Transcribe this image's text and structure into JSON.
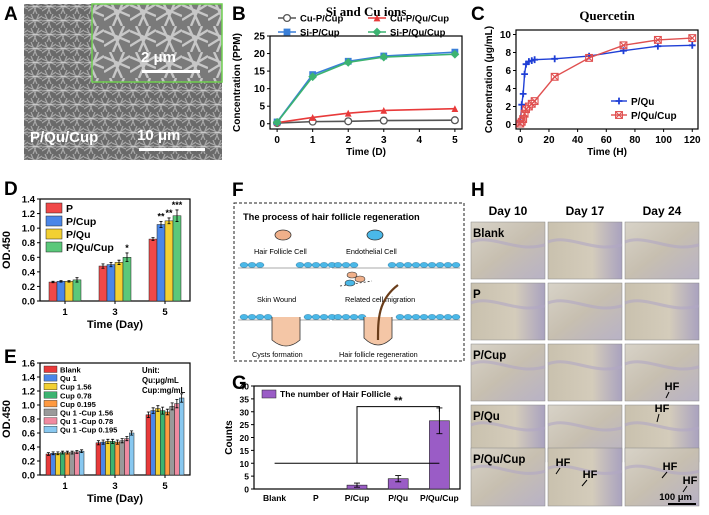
{
  "panels": {
    "A": "A",
    "B": "B",
    "C": "C",
    "D": "D",
    "E": "E",
    "F": "F",
    "G": "G",
    "H": "H"
  },
  "panelA": {
    "sample_label": "P/Qu/Cup",
    "scale_main": "10 μm",
    "scale_inset": "2 μm"
  },
  "colors": {
    "cu_p": "#555555",
    "cu_pqu": "#e83a3a",
    "si_p": "#3a7fd8",
    "si_pqu": "#3cb371",
    "pqu_blue": "#1f3fd6",
    "pqucup_red": "#e05050",
    "d_p": "#f04848",
    "d_pcup": "#4a86e8",
    "d_pqu": "#f2d032",
    "d_pqucup": "#5ac87a",
    "g_bar": "#9a5cc6"
  },
  "chart_data": [
    {
      "id": "B",
      "type": "line",
      "title": "Si and Cu ions",
      "xlabel": "Time (D)",
      "ylabel": "Concentration (PPM)",
      "xlim": [
        -0.2,
        5.2
      ],
      "ylim": [
        -1.5,
        25
      ],
      "xticks": [
        0,
        1,
        2,
        3,
        4,
        5
      ],
      "yticks": [
        0,
        5,
        10,
        15,
        20,
        25
      ],
      "x": [
        0,
        1,
        2,
        3,
        5
      ],
      "series": [
        {
          "name": "Cu-P/Cup",
          "marker": "circle",
          "color": "#555555",
          "values": [
            0.2,
            0.6,
            0.7,
            0.9,
            1.0
          ]
        },
        {
          "name": "Cu-P/Qu/Cup",
          "marker": "triangle",
          "color": "#e83a3a",
          "values": [
            0.3,
            1.8,
            3.0,
            3.8,
            4.3
          ]
        },
        {
          "name": "Si-P/Cup",
          "marker": "square",
          "color": "#3a7fd8",
          "values": [
            0.5,
            14.0,
            17.8,
            19.3,
            20.4
          ]
        },
        {
          "name": "Si-P/Qu/Cup",
          "marker": "diamond",
          "color": "#3cb371",
          "values": [
            0.4,
            13.4,
            17.5,
            19.0,
            19.8
          ]
        }
      ]
    },
    {
      "id": "C",
      "type": "line",
      "title": "Quercetin",
      "xlabel": "Time (H)",
      "ylabel": "Concentration (μg/mL)",
      "xlim": [
        -3,
        124
      ],
      "ylim": [
        -0.5,
        10.5
      ],
      "xticks": [
        0,
        20,
        40,
        60,
        80,
        100,
        120
      ],
      "yticks": [
        0,
        2,
        4,
        6,
        8,
        10
      ],
      "series": [
        {
          "name": "P/Qu",
          "marker": "plus",
          "color": "#1f3fd6",
          "x": [
            0,
            1,
            2,
            3,
            4,
            6,
            8,
            10,
            24,
            48,
            72,
            96,
            120
          ],
          "values": [
            0.3,
            2.2,
            3.4,
            5.6,
            6.7,
            7.0,
            7.1,
            7.2,
            7.3,
            7.6,
            8.2,
            8.7,
            8.8
          ]
        },
        {
          "name": "P/Qu/Cup",
          "marker": "cross",
          "color": "#e05050",
          "x": [
            0,
            1,
            2,
            3,
            4,
            6,
            8,
            10,
            24,
            48,
            72,
            96,
            120
          ],
          "values": [
            0.1,
            0.3,
            0.6,
            1.2,
            1.7,
            2.0,
            2.3,
            2.6,
            5.3,
            7.4,
            8.8,
            9.4,
            9.6
          ]
        }
      ]
    },
    {
      "id": "D",
      "type": "bar",
      "xlabel": "Time (Day)",
      "ylabel": "OD.450",
      "ylim": [
        0,
        1.4
      ],
      "yticks": [
        0.0,
        0.2,
        0.4,
        0.6,
        0.8,
        1.0,
        1.2,
        1.4
      ],
      "categories": [
        "1",
        "3",
        "5"
      ],
      "series": [
        {
          "name": "P",
          "color": "#f04848",
          "values": [
            0.26,
            0.48,
            0.85
          ],
          "err": [
            0.01,
            0.03,
            0.02
          ]
        },
        {
          "name": "P/Cup",
          "color": "#4a86e8",
          "values": [
            0.27,
            0.5,
            1.05
          ],
          "err": [
            0.01,
            0.03,
            0.04
          ]
        },
        {
          "name": "P/Qu",
          "color": "#f2d032",
          "values": [
            0.27,
            0.53,
            1.1
          ],
          "err": [
            0.01,
            0.03,
            0.04
          ]
        },
        {
          "name": "P/Qu/Cup",
          "color": "#5ac87a",
          "values": [
            0.29,
            0.6,
            1.17
          ],
          "err": [
            0.03,
            0.06,
            0.08
          ]
        }
      ],
      "annotations": [
        "*",
        "**",
        "**",
        "***"
      ]
    },
    {
      "id": "E",
      "type": "bar",
      "xlabel": "Time (Day)",
      "ylabel": "OD.450",
      "ylim": [
        0,
        1.6
      ],
      "yticks": [
        0.0,
        0.2,
        0.4,
        0.6,
        0.8,
        1.0,
        1.2,
        1.4,
        1.6
      ],
      "categories": [
        "1",
        "3",
        "5"
      ],
      "unit_text": [
        "Unit:",
        "Qu:μg/mL",
        "Cup:mg/mL"
      ],
      "series": [
        {
          "name": "Blank",
          "color": "#e83a3a",
          "values": [
            0.3,
            0.46,
            0.86
          ],
          "err": [
            0.02,
            0.03,
            0.04
          ]
        },
        {
          "name": "Qu 1",
          "color": "#4a86e8",
          "values": [
            0.31,
            0.47,
            0.92
          ],
          "err": [
            0.02,
            0.03,
            0.04
          ]
        },
        {
          "name": "Cup 1.56",
          "color": "#f2d032",
          "values": [
            0.31,
            0.48,
            0.95
          ],
          "err": [
            0.02,
            0.03,
            0.04
          ]
        },
        {
          "name": "Cup 0.78",
          "color": "#3cb371",
          "values": [
            0.32,
            0.48,
            0.92
          ],
          "err": [
            0.02,
            0.03,
            0.05
          ]
        },
        {
          "name": "Cup 0.195",
          "color": "#ff9a40",
          "values": [
            0.32,
            0.47,
            0.9
          ],
          "err": [
            0.02,
            0.03,
            0.04
          ]
        },
        {
          "name": "Qu 1 -Cup 1.56",
          "color": "#9a9a9a",
          "values": [
            0.32,
            0.49,
            0.98
          ],
          "err": [
            0.02,
            0.03,
            0.05
          ]
        },
        {
          "name": "Qu 1 -Cup 0.78",
          "color": "#f08aa0",
          "values": [
            0.33,
            0.52,
            1.02
          ],
          "err": [
            0.02,
            0.03,
            0.06
          ]
        },
        {
          "name": "Qu 1 -Cup 0.195",
          "color": "#88c8f0",
          "values": [
            0.34,
            0.6,
            1.1
          ],
          "err": [
            0.02,
            0.03,
            0.06
          ]
        }
      ]
    },
    {
      "id": "G",
      "type": "bar",
      "ylabel": "Counts",
      "ylim": [
        0,
        40
      ],
      "yticks": [
        0,
        5,
        10,
        15,
        20,
        25,
        30,
        35,
        40
      ],
      "legend": "The number of Hair Follicle",
      "categories": [
        "Blank",
        "P",
        "P/Cup",
        "P/Qu",
        "P/Qu/Cup"
      ],
      "values": [
        0,
        0,
        1.5,
        4,
        26.5
      ],
      "err": [
        0,
        0,
        0.8,
        1.2,
        5
      ],
      "significance": "**"
    }
  ],
  "panelF": {
    "title": "The process of hair follicle regeneration",
    "hair_follicle_cell": "Hair Follicle Cell",
    "endothelial_cell": "Endothelial Cell",
    "skin_wound": "Skin Wound",
    "related_cell_migration": "Related cell migration",
    "cysts_formation": "Cysts formation",
    "hair_follicle_regeneration": "Hair follicle regeneration"
  },
  "panelH": {
    "columns": [
      "Day 10",
      "Day 17",
      "Day 24"
    ],
    "rows": [
      "Blank",
      "P",
      "P/Cup",
      "P/Qu",
      "P/Qu/Cup"
    ],
    "hf_label": "HF",
    "scale": "100 μm"
  }
}
